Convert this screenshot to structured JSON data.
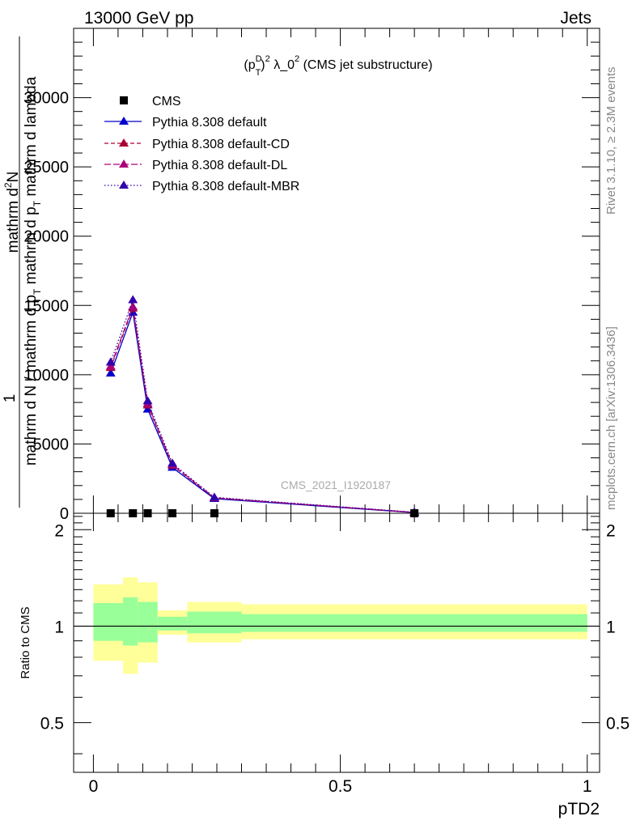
{
  "header": {
    "left": "13000 GeV pp",
    "right": "Jets"
  },
  "side_labels": {
    "rivet": "Rivet 3.1.10, ≥ 2.3M events",
    "mcplots": "mcplots.cern.ch [arXiv:1306.3436]"
  },
  "chart_data": [
    {
      "type": "line",
      "title_main": "(p",
      "title_sub": "T",
      "title_sup1": "D",
      "title_sup2": "2",
      "title_mid": " λ_0",
      "title_sup3": "2",
      "title_end": " (CMS jet substructure)",
      "ylabel": {
        "prefix": "1",
        "numerator": "mathrm d",
        "numerator_sup": "2",
        "numerator_end": "N",
        "denominator_1": "mathrm d N / mathrm d p",
        "denominator_sub1": "T",
        "denominator_2": " mathrm d p",
        "denominator_sub2": "T",
        "denominator_3": " mathrm d lambda"
      },
      "watermark": "CMS_2021_I1920187",
      "xlim": [
        -0.04,
        1.025
      ],
      "ylim": [
        0,
        35000
      ],
      "yticks": [
        0,
        5000,
        10000,
        15000,
        20000,
        25000,
        30000
      ],
      "ytick_labels": [
        "0",
        "5000",
        "10000",
        "15000",
        "20000",
        "25000",
        "30000"
      ],
      "legend": [
        "CMS",
        "Pythia 8.308 default",
        "Pythia 8.308 default-CD",
        "Pythia 8.308 default-DL",
        "Pythia 8.308 default-MBR"
      ],
      "colors": {
        "data": "#000000",
        "default": "#0000cc",
        "cd": "#aa0033",
        "dl": "#aa0077",
        "mbr": "#3300aa"
      },
      "data_points": {
        "name": "CMS",
        "x": [
          0.035,
          0.08,
          0.11,
          0.16,
          0.245,
          0.65
        ],
        "y": [
          0,
          0,
          0,
          0,
          0,
          0
        ]
      },
      "series": [
        {
          "name": "Pythia 8.308 default",
          "style": "solid",
          "x": [
            0.035,
            0.08,
            0.11,
            0.16,
            0.245,
            0.65
          ],
          "y": [
            10100,
            14500,
            7500,
            3300,
            1050,
            50
          ]
        },
        {
          "name": "Pythia 8.308 default-CD",
          "style": "dashed",
          "x": [
            0.035,
            0.08,
            0.11,
            0.16,
            0.245,
            0.65
          ],
          "y": [
            10500,
            14800,
            7800,
            3450,
            1100,
            60
          ]
        },
        {
          "name": "Pythia 8.308 default-DL",
          "style": "dashed",
          "x": [
            0.035,
            0.08,
            0.11,
            0.16,
            0.245,
            0.65
          ],
          "y": [
            10600,
            14900,
            7900,
            3500,
            1120,
            60
          ]
        },
        {
          "name": "Pythia 8.308 default-MBR",
          "style": "dotted",
          "x": [
            0.035,
            0.08,
            0.11,
            0.16,
            0.245,
            0.65
          ],
          "y": [
            10900,
            15400,
            8100,
            3600,
            1150,
            70
          ]
        }
      ]
    },
    {
      "type": "area",
      "ylabel": "Ratio to CMS",
      "xlabel": "pTD2",
      "xlim": [
        -0.04,
        1.025
      ],
      "ylim": [
        0.35,
        2.25
      ],
      "yticks": [
        0.5,
        1,
        2
      ],
      "ytick_labels": [
        "0.5",
        "1",
        "2"
      ],
      "xticks": [
        0,
        0.5,
        1
      ],
      "xtick_labels": [
        "0",
        "0.5",
        "1"
      ],
      "reference": 1,
      "bands": {
        "edges": [
          0.0,
          0.06,
          0.09,
          0.13,
          0.19,
          0.3,
          1.0
        ],
        "outer_lo": [
          0.78,
          0.71,
          0.77,
          0.94,
          0.89,
          0.91
        ],
        "outer_hi": [
          1.35,
          1.42,
          1.37,
          1.12,
          1.19,
          1.17
        ],
        "inner_lo": [
          0.9,
          0.87,
          0.89,
          0.97,
          0.95,
          0.96
        ],
        "inner_hi": [
          1.18,
          1.23,
          1.19,
          1.07,
          1.11,
          1.09
        ],
        "outer_color": "#ffff99",
        "inner_color": "#99ff99"
      }
    }
  ]
}
